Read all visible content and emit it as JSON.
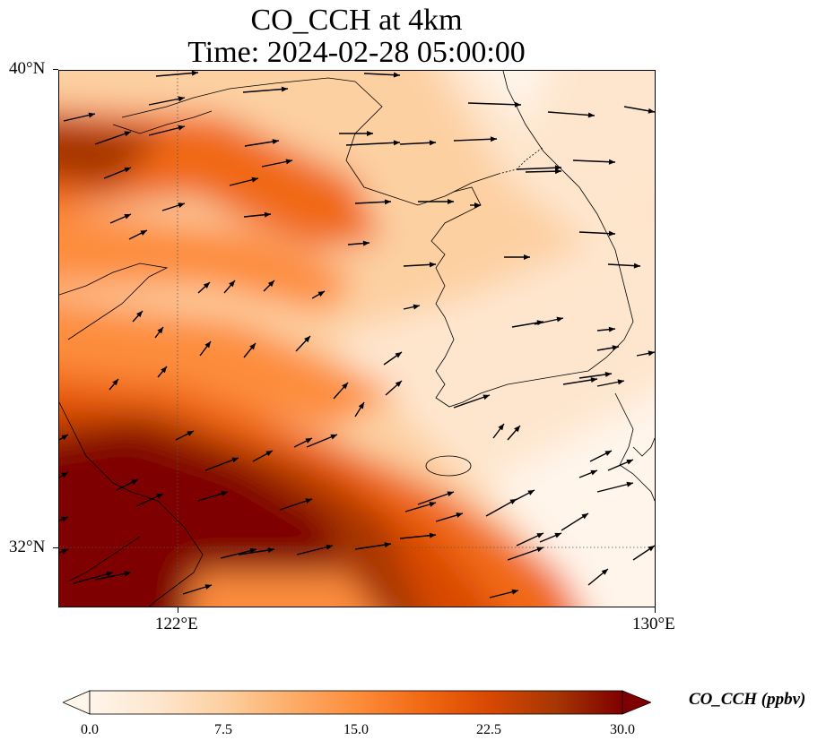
{
  "title_line1": "CO_CCH at 4km",
  "title_line2": "Time: 2024-02-28 05:00:00",
  "axes": {
    "lat_labels": [
      "40°N",
      "32°N"
    ],
    "lon_labels": [
      "122°E",
      "130°E"
    ],
    "lon_range": [
      120,
      130
    ],
    "lat_range": [
      31,
      40
    ]
  },
  "colorbar": {
    "label": "CO_CCH (ppbv)",
    "ticks": [
      "0.0",
      "7.5",
      "15.0",
      "22.5",
      "30.0"
    ],
    "min": 0,
    "max": 30,
    "extend": "both",
    "colormap": [
      "#fff5eb",
      "#fee6ce",
      "#fdd0a2",
      "#fdae6b",
      "#fd8d3c",
      "#f16913",
      "#d94801",
      "#a63603",
      "#7f0000"
    ]
  },
  "map": {
    "field": "CO_CCH",
    "units": "ppbv",
    "gridlines": "dotted at 122°E and 32°N",
    "features": [
      "coastlines",
      "borders",
      "wind vectors"
    ]
  }
}
